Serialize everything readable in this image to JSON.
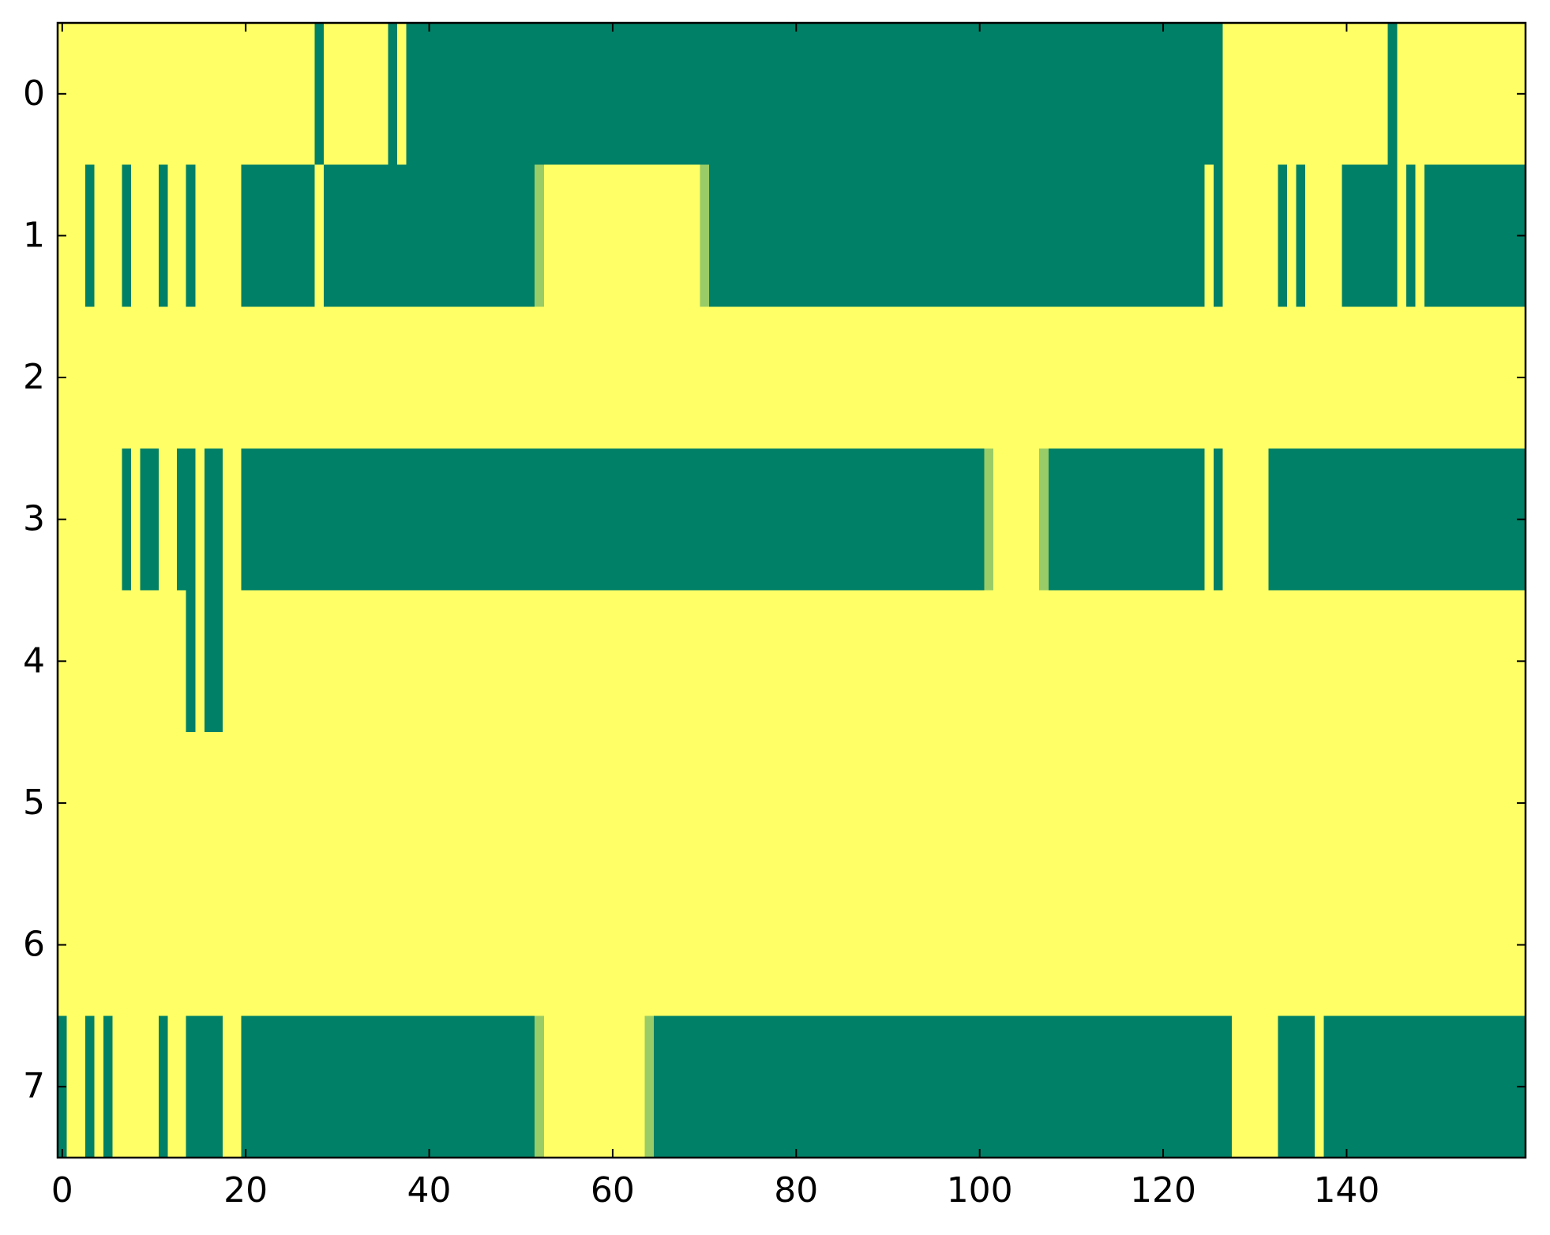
{
  "chart_data": {
    "type": "heatmap",
    "colormap": "summer",
    "zlim": [
      0,
      1
    ],
    "xlim": [
      -0.5,
      159.5
    ],
    "ylim": [
      7.5,
      -0.5
    ],
    "xticks": [
      0,
      20,
      40,
      60,
      80,
      100,
      120,
      140
    ],
    "yticks": [
      0,
      1,
      2,
      3,
      4,
      5,
      6,
      7
    ],
    "z": [
      [
        1,
        1,
        1,
        1,
        1,
        1,
        1,
        1,
        1,
        1,
        1,
        1,
        1,
        1,
        1,
        1,
        1,
        1,
        1,
        1,
        1,
        1,
        1,
        1,
        1,
        1,
        1,
        1,
        0,
        1,
        1,
        1,
        1,
        1,
        1,
        1,
        0,
        1,
        0,
        0,
        0,
        0,
        0,
        0,
        0,
        0,
        0,
        0,
        0,
        0,
        0,
        0,
        0,
        0,
        0,
        0,
        0,
        0,
        0,
        0,
        0,
        0,
        0,
        0,
        0,
        0,
        0,
        0,
        0,
        0,
        0,
        0,
        0,
        0,
        0,
        0,
        0,
        0,
        0,
        0,
        0,
        0,
        0,
        0,
        0,
        0,
        0,
        0,
        0,
        0,
        0,
        0,
        0,
        0,
        0,
        0,
        0,
        0,
        0,
        0,
        0,
        0,
        0,
        0,
        0,
        0,
        0,
        0,
        0,
        0,
        0,
        0,
        0,
        0,
        0,
        0,
        0,
        0,
        0,
        0,
        0,
        0,
        0,
        0,
        0,
        0,
        0,
        1,
        1,
        1,
        1,
        1,
        1,
        1,
        1,
        1,
        1,
        1,
        1,
        1,
        1,
        1,
        1,
        1,
        1,
        0,
        1,
        1,
        1,
        1,
        1,
        1,
        1,
        1,
        1,
        1,
        1,
        1,
        1,
        1
      ],
      [
        1,
        1,
        1,
        0,
        1,
        1,
        1,
        0,
        1,
        1,
        1,
        0,
        1,
        1,
        0,
        1,
        1,
        1,
        1,
        1,
        0,
        0,
        0,
        0,
        0,
        0,
        0,
        0,
        1,
        0,
        0,
        0,
        0,
        0,
        0,
        0,
        0,
        0,
        0,
        0,
        0,
        0,
        0,
        0,
        0,
        0,
        0,
        0,
        0,
        0,
        0,
        0,
        0.6,
        1,
        1,
        1,
        1,
        1,
        1,
        1,
        1,
        1,
        1,
        1,
        1,
        1,
        1,
        1,
        1,
        1,
        0.6,
        0,
        0,
        0,
        0,
        0,
        0,
        0,
        0,
        0,
        0,
        0,
        0,
        0,
        0,
        0,
        0,
        0,
        0,
        0,
        0,
        0,
        0,
        0,
        0,
        0,
        0,
        0,
        0,
        0,
        0,
        0,
        0,
        0,
        0,
        0,
        0,
        0,
        0,
        0,
        0,
        0,
        0,
        0,
        0,
        0,
        0,
        0,
        0,
        0,
        0,
        0,
        0,
        0,
        0,
        1,
        0,
        1,
        1,
        1,
        1,
        1,
        1,
        0,
        1,
        0,
        1,
        1,
        1,
        1,
        0,
        0,
        0,
        0,
        0,
        0,
        1,
        0,
        1,
        0,
        0,
        0,
        0,
        0,
        0,
        0,
        0,
        0,
        0,
        0
      ],
      [
        1,
        1,
        1,
        1,
        1,
        1,
        1,
        1,
        1,
        1,
        1,
        1,
        1,
        1,
        1,
        1,
        1,
        1,
        1,
        1,
        1,
        1,
        1,
        1,
        1,
        1,
        1,
        1,
        1,
        1,
        1,
        1,
        1,
        1,
        1,
        1,
        1,
        1,
        1,
        1,
        1,
        1,
        1,
        1,
        1,
        1,
        1,
        1,
        1,
        1,
        1,
        1,
        1,
        1,
        1,
        1,
        1,
        1,
        1,
        1,
        1,
        1,
        1,
        1,
        1,
        1,
        1,
        1,
        1,
        1,
        1,
        1,
        1,
        1,
        1,
        1,
        1,
        1,
        1,
        1,
        1,
        1,
        1,
        1,
        1,
        1,
        1,
        1,
        1,
        1,
        1,
        1,
        1,
        1,
        1,
        1,
        1,
        1,
        1,
        1,
        1,
        1,
        1,
        1,
        1,
        1,
        1,
        1,
        1,
        1,
        1,
        1,
        1,
        1,
        1,
        1,
        1,
        1,
        1,
        1,
        1,
        1,
        1,
        1,
        1,
        1,
        1,
        1,
        1,
        1,
        1,
        1,
        1,
        1,
        1,
        1,
        1,
        1,
        1,
        1,
        1,
        1,
        1,
        1,
        1,
        1,
        1,
        1,
        1,
        1,
        1,
        1,
        1,
        1,
        1,
        1,
        1,
        1,
        1,
        1
      ],
      [
        1,
        1,
        1,
        1,
        1,
        1,
        1,
        0,
        1,
        0,
        0,
        1,
        1,
        0,
        0,
        1,
        0,
        0,
        1,
        1,
        0,
        0,
        0,
        0,
        0,
        0,
        0,
        0,
        0,
        0,
        0,
        0,
        0,
        0,
        0,
        0,
        0,
        0,
        0,
        0,
        0,
        0,
        0,
        0,
        0,
        0,
        0,
        0,
        0,
        0,
        0,
        0,
        0,
        0,
        0,
        0,
        0,
        0,
        0,
        0,
        0,
        0,
        0,
        0,
        0,
        0,
        0,
        0,
        0,
        0,
        0,
        0,
        0,
        0,
        0,
        0,
        0,
        0,
        0,
        0,
        0,
        0,
        0,
        0,
        0,
        0,
        0,
        0,
        0,
        0,
        0,
        0,
        0,
        0,
        0,
        0,
        0,
        0,
        0,
        0,
        0,
        0.6,
        1,
        1,
        1,
        1,
        1,
        0.6,
        0,
        0,
        0,
        0,
        0,
        0,
        0,
        0,
        0,
        0,
        0,
        0,
        0,
        0,
        0,
        0,
        0,
        1,
        0,
        1,
        1,
        1,
        1,
        1,
        0,
        0,
        0,
        0,
        0,
        0,
        0,
        0,
        0,
        0,
        0,
        0,
        0,
        0,
        0,
        0,
        0,
        0,
        0,
        0,
        0,
        0,
        0,
        0,
        0,
        0,
        0,
        0
      ],
      [
        1,
        1,
        1,
        1,
        1,
        1,
        1,
        1,
        1,
        1,
        1,
        1,
        1,
        1,
        0,
        1,
        0,
        0,
        1,
        1,
        1,
        1,
        1,
        1,
        1,
        1,
        1,
        1,
        1,
        1,
        1,
        1,
        1,
        1,
        1,
        1,
        1,
        1,
        1,
        1,
        1,
        1,
        1,
        1,
        1,
        1,
        1,
        1,
        1,
        1,
        1,
        1,
        1,
        1,
        1,
        1,
        1,
        1,
        1,
        1,
        1,
        1,
        1,
        1,
        1,
        1,
        1,
        1,
        1,
        1,
        1,
        1,
        1,
        1,
        1,
        1,
        1,
        1,
        1,
        1,
        1,
        1,
        1,
        1,
        1,
        1,
        1,
        1,
        1,
        1,
        1,
        1,
        1,
        1,
        1,
        1,
        1,
        1,
        1,
        1,
        1,
        1,
        1,
        1,
        1,
        1,
        1,
        1,
        1,
        1,
        1,
        1,
        1,
        1,
        1,
        1,
        1,
        1,
        1,
        1,
        1,
        1,
        1,
        1,
        1,
        1,
        1,
        1,
        1,
        1,
        1,
        1,
        1,
        1,
        1,
        1,
        1,
        1,
        1,
        1,
        1,
        1,
        1,
        1,
        1,
        1,
        1,
        1,
        1,
        1,
        1,
        1,
        1,
        1,
        1,
        1,
        1,
        1,
        1,
        1
      ],
      [
        1,
        1,
        1,
        1,
        1,
        1,
        1,
        1,
        1,
        1,
        1,
        1,
        1,
        1,
        1,
        1,
        1,
        1,
        1,
        1,
        1,
        1,
        1,
        1,
        1,
        1,
        1,
        1,
        1,
        1,
        1,
        1,
        1,
        1,
        1,
        1,
        1,
        1,
        1,
        1,
        1,
        1,
        1,
        1,
        1,
        1,
        1,
        1,
        1,
        1,
        1,
        1,
        1,
        1,
        1,
        1,
        1,
        1,
        1,
        1,
        1,
        1,
        1,
        1,
        1,
        1,
        1,
        1,
        1,
        1,
        1,
        1,
        1,
        1,
        1,
        1,
        1,
        1,
        1,
        1,
        1,
        1,
        1,
        1,
        1,
        1,
        1,
        1,
        1,
        1,
        1,
        1,
        1,
        1,
        1,
        1,
        1,
        1,
        1,
        1,
        1,
        1,
        1,
        1,
        1,
        1,
        1,
        1,
        1,
        1,
        1,
        1,
        1,
        1,
        1,
        1,
        1,
        1,
        1,
        1,
        1,
        1,
        1,
        1,
        1,
        1,
        1,
        1,
        1,
        1,
        1,
        1,
        1,
        1,
        1,
        1,
        1,
        1,
        1,
        1,
        1,
        1,
        1,
        1,
        1,
        1,
        1,
        1,
        1,
        1,
        1,
        1,
        1,
        1,
        1,
        1,
        1,
        1,
        1,
        1
      ],
      [
        1,
        1,
        1,
        1,
        1,
        1,
        1,
        1,
        1,
        1,
        1,
        1,
        1,
        1,
        1,
        1,
        1,
        1,
        1,
        1,
        1,
        1,
        1,
        1,
        1,
        1,
        1,
        1,
        1,
        1,
        1,
        1,
        1,
        1,
        1,
        1,
        1,
        1,
        1,
        1,
        1,
        1,
        1,
        1,
        1,
        1,
        1,
        1,
        1,
        1,
        1,
        1,
        1,
        1,
        1,
        1,
        1,
        1,
        1,
        1,
        1,
        1,
        1,
        1,
        1,
        1,
        1,
        1,
        1,
        1,
        1,
        1,
        1,
        1,
        1,
        1,
        1,
        1,
        1,
        1,
        1,
        1,
        1,
        1,
        1,
        1,
        1,
        1,
        1,
        1,
        1,
        1,
        1,
        1,
        1,
        1,
        1,
        1,
        1,
        1,
        1,
        1,
        1,
        1,
        1,
        1,
        1,
        1,
        1,
        1,
        1,
        1,
        1,
        1,
        1,
        1,
        1,
        1,
        1,
        1,
        1,
        1,
        1,
        1,
        1,
        1,
        1,
        1,
        1,
        1,
        1,
        1,
        1,
        1,
        1,
        1,
        1,
        1,
        1,
        1,
        1,
        1,
        1,
        1,
        1,
        1,
        1,
        1,
        1,
        1,
        1,
        1,
        1,
        1,
        1,
        1,
        1,
        1,
        1,
        1
      ],
      [
        0,
        1,
        1,
        0,
        1,
        0,
        1,
        1,
        1,
        1,
        1,
        0,
        1,
        1,
        0,
        0,
        0,
        0,
        1,
        1,
        0,
        0,
        0,
        0,
        0,
        0,
        0,
        0,
        0,
        0,
        0,
        0,
        0,
        0,
        0,
        0,
        0,
        0,
        0,
        0,
        0,
        0,
        0,
        0,
        0,
        0,
        0,
        0,
        0,
        0,
        0,
        0,
        0.6,
        1,
        1,
        1,
        1,
        1,
        1,
        1,
        1,
        1,
        1,
        1,
        0.6,
        0,
        0,
        0,
        0,
        0,
        0,
        0,
        0,
        0,
        0,
        0,
        0,
        0,
        0,
        0,
        0,
        0,
        0,
        0,
        0,
        0,
        0,
        0,
        0,
        0,
        0,
        0,
        0,
        0,
        0,
        0,
        0,
        0,
        0,
        0,
        0,
        0,
        0,
        0,
        0,
        0,
        0,
        0,
        0,
        0,
        0,
        0,
        0,
        0,
        0,
        0,
        0,
        0,
        0,
        0,
        0,
        0,
        0,
        0,
        0,
        0,
        0,
        0,
        1,
        1,
        1,
        1,
        1,
        0,
        0,
        0,
        0,
        1,
        0,
        0,
        0,
        0,
        0,
        0,
        0,
        0,
        0,
        0,
        0,
        0,
        0,
        0,
        0,
        0,
        0,
        0,
        0,
        0,
        0,
        0
      ]
    ]
  }
}
